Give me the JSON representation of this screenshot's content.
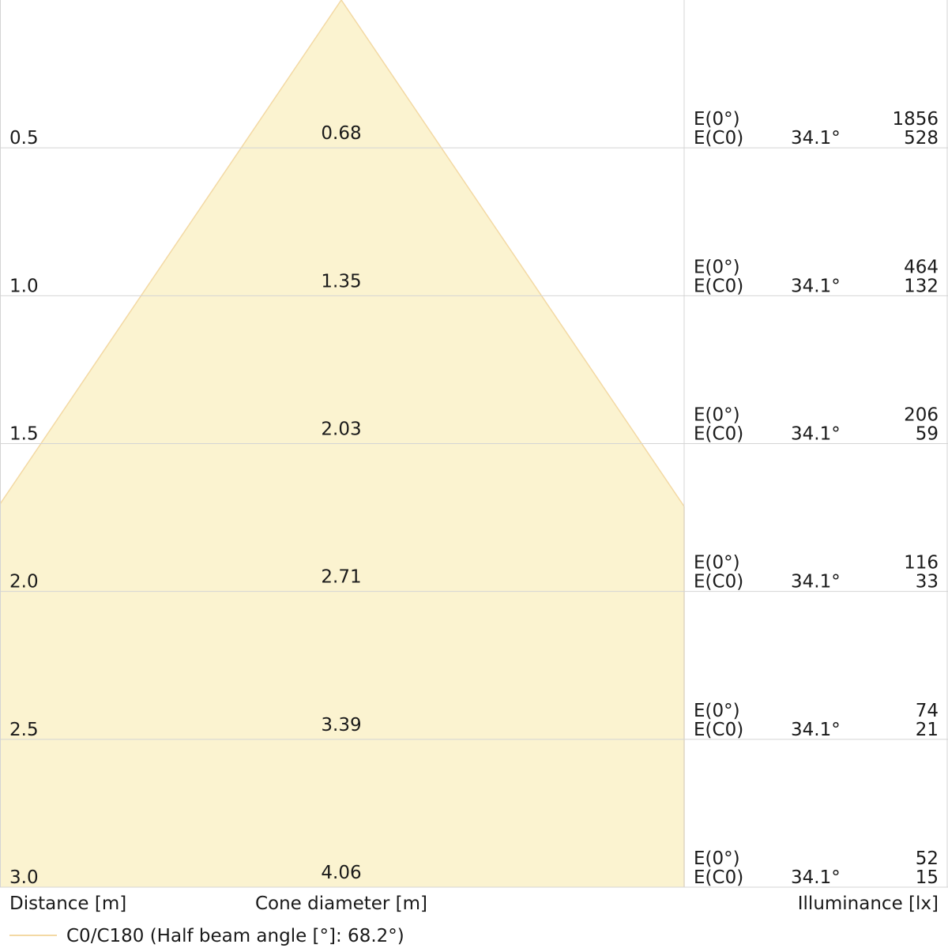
{
  "chart_data": {
    "type": "area",
    "title": "",
    "half_beam_angle_deg": 68.2,
    "label_e0": "E(0°)",
    "label_ec0": "E(C0)",
    "xlabel_distance": "Distance [m]",
    "xlabel_cone": "Cone diameter [m]",
    "xlabel_illuminance": "Illuminance [lx]",
    "legend_label": "C0/C180 (Half beam angle [°]: 68.2°)",
    "legend_placement": "bottom-left",
    "distance_range": [
      0,
      3.0
    ],
    "grid": true,
    "fill_color": "#fbf3d0",
    "line_color": "#f3d9a4",
    "grid_color": "#d4d4d4",
    "rows": [
      {
        "distance": "0.5",
        "cone_diameter": "0.68",
        "angle": "34.1°",
        "e0": "1856",
        "ec0": "528"
      },
      {
        "distance": "1.0",
        "cone_diameter": "1.35",
        "angle": "34.1°",
        "e0": "464",
        "ec0": "132"
      },
      {
        "distance": "1.5",
        "cone_diameter": "2.03",
        "angle": "34.1°",
        "e0": "206",
        "ec0": "59"
      },
      {
        "distance": "2.0",
        "cone_diameter": "2.71",
        "angle": "34.1°",
        "e0": "116",
        "ec0": "33"
      },
      {
        "distance": "2.5",
        "cone_diameter": "3.39",
        "angle": "34.1°",
        "e0": "74",
        "ec0": "21"
      },
      {
        "distance": "3.0",
        "cone_diameter": "4.06",
        "angle": "34.1°",
        "e0": "52",
        "ec0": "15"
      }
    ]
  }
}
